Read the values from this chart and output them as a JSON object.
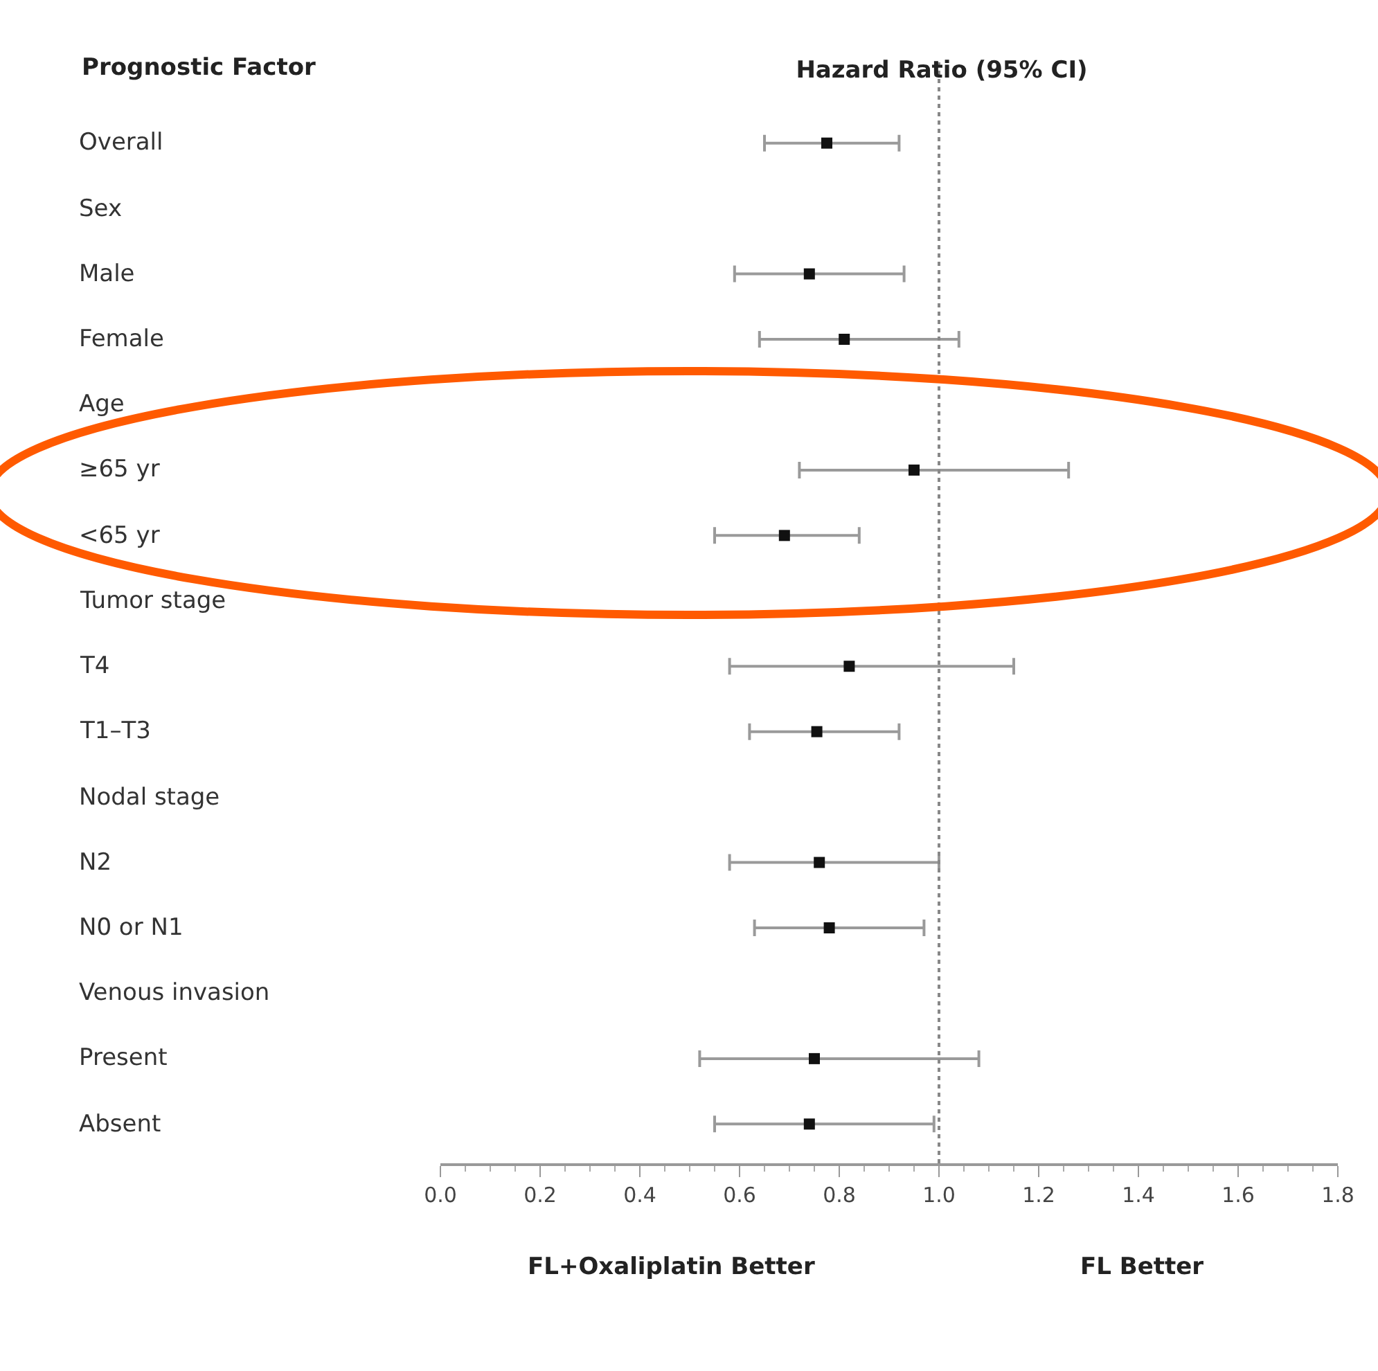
{
  "chart_data": {
    "type": "scatter",
    "title": "Hazard Ratio (95% CI)",
    "ylabel": "Prognostic Factor",
    "orientation": "horizontal",
    "categories": [
      "Overall",
      "Sex",
      "Male",
      "Female",
      "Age",
      "≥65 yr",
      "<65 yr",
      "Tumor stage",
      "T4",
      "T1–T3",
      "Nodal stage",
      "N2",
      "N0 or N1",
      "Venous invasion",
      "Present",
      "Absent"
    ],
    "values": [
      0.775,
      null,
      0.74,
      0.81,
      null,
      0.95,
      0.69,
      null,
      0.82,
      0.755,
      null,
      0.76,
      0.78,
      null,
      0.75,
      0.74
    ],
    "errors": [
      [
        0.65,
        0.92
      ],
      null,
      [
        0.59,
        0.93
      ],
      [
        0.64,
        1.04
      ],
      null,
      [
        0.72,
        1.26
      ],
      [
        0.55,
        0.84
      ],
      null,
      [
        0.58,
        1.15
      ],
      [
        0.62,
        0.92
      ],
      null,
      [
        0.58,
        1.0
      ],
      [
        0.63,
        0.97
      ],
      null,
      [
        0.52,
        1.08
      ],
      [
        0.55,
        0.99
      ]
    ],
    "color": "#111111",
    "marker": "square",
    "xlim": [
      0,
      1.8
    ],
    "xticks": [
      {
        "value": 0,
        "label": "0.0"
      },
      0.2,
      0.4,
      0.6,
      0.8,
      {
        "value": 1,
        "label": "1.0"
      },
      1.2,
      1.4,
      1.6,
      1.8
    ],
    "ref_lines": [
      {
        "axis": "x",
        "value": 1,
        "line_style": "dotted",
        "color": "#888888"
      }
    ],
    "annotations": [
      "FL+Oxaliplatin Better",
      "FL Better"
    ],
    "grid": false,
    "legend": false
  }
}
